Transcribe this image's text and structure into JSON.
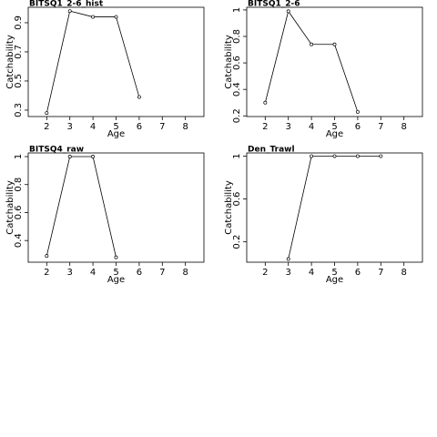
{
  "chart_data": [
    {
      "type": "line",
      "title": "BITSQ1_2-6_hist",
      "x_label": "Age",
      "y_label": "Catchability",
      "x": [
        2,
        3,
        4,
        5,
        6
      ],
      "values": [
        0.28,
        0.98,
        0.94,
        0.94,
        0.39
      ],
      "color": "#000000",
      "xlim": [
        1.2,
        8.8
      ],
      "xticks": [
        2,
        3,
        4,
        5,
        6,
        7,
        8
      ],
      "ylim": [
        0.256,
        1.006
      ],
      "yticks": [
        0.3,
        0.5,
        0.7,
        0.9
      ]
    },
    {
      "type": "line",
      "title": "BITSQ1_2-6",
      "x_label": "Age",
      "y_label": "Catchability",
      "x": [
        2,
        3,
        4,
        5,
        6
      ],
      "values": [
        0.3,
        0.99,
        0.74,
        0.74,
        0.23
      ],
      "color": "#000000",
      "xlim": [
        1.2,
        8.8
      ],
      "xticks": [
        2,
        3,
        4,
        5,
        6,
        7,
        8
      ],
      "ylim": [
        0.195,
        1.02
      ],
      "yticks": [
        0.2,
        0.4,
        0.6,
        0.8,
        1.0
      ]
    },
    {
      "type": "line",
      "title": "BITSQ4_raw",
      "x_label": "Age",
      "y_label": "Catchability",
      "x": [
        2,
        3,
        4,
        5
      ],
      "values": [
        0.29,
        1.0,
        1.0,
        0.28
      ],
      "color": "#000000",
      "xlim": [
        1.2,
        8.8
      ],
      "xticks": [
        2,
        3,
        4,
        5,
        6,
        7,
        8
      ],
      "ylim": [
        0.245,
        1.026
      ],
      "yticks": [
        0.4,
        0.6,
        0.8,
        1.0
      ]
    },
    {
      "type": "line",
      "title": "Den_Trawl",
      "x_label": "Age",
      "y_label": "Catchability",
      "x": [
        3,
        4,
        5,
        6,
        7
      ],
      "values": [
        0.04,
        1.0,
        1.0,
        1.0,
        1.0
      ],
      "color": "#000000",
      "xlim": [
        1.2,
        8.8
      ],
      "xticks": [
        2,
        3,
        4,
        5,
        6,
        7,
        8
      ],
      "ylim": [
        0.01,
        1.03
      ],
      "yticks": [
        0.2,
        0.6,
        1.0
      ]
    }
  ]
}
